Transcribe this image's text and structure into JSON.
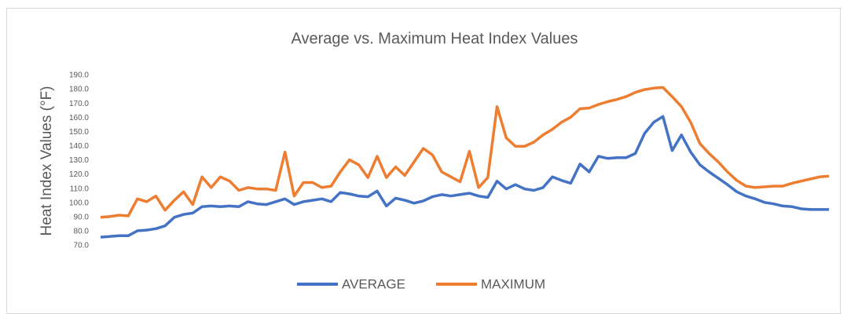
{
  "chart_data": {
    "type": "line",
    "title": "Average vs. Maximum Heat Index Values",
    "y_label": "Heat Index Values (°F)",
    "categories": [
      null,
      null,
      null,
      null,
      null,
      null,
      null,
      null,
      null,
      null,
      null,
      null,
      null,
      null,
      null,
      null,
      null,
      null,
      null,
      null,
      null,
      null,
      null,
      null,
      null,
      null,
      null,
      null,
      null,
      null,
      null,
      null,
      null,
      null,
      null,
      null,
      null,
      null,
      null,
      null,
      null,
      null,
      null,
      null,
      null,
      null,
      null,
      null,
      null,
      null,
      null,
      null,
      null,
      null,
      null,
      null,
      null,
      null,
      null,
      null,
      null,
      null,
      null,
      null,
      null,
      null,
      null,
      null,
      null,
      null,
      null,
      null,
      null,
      null,
      null,
      null,
      null,
      null,
      null,
      null
    ],
    "series": [
      {
        "name": "AVERAGE",
        "color": "#4472c4",
        "values": [
          76,
          76.5,
          77,
          77,
          80.5,
          81,
          82,
          84,
          90,
          92,
          93,
          97.5,
          98,
          97.5,
          98,
          97.5,
          101,
          99.5,
          99,
          101,
          103,
          99,
          101,
          102,
          103,
          101,
          107.5,
          106.5,
          105,
          104.5,
          108.5,
          98,
          103.5,
          102,
          100,
          101.5,
          104.5,
          106,
          105,
          106,
          107,
          105,
          104,
          115.5,
          110,
          113,
          110,
          109,
          111,
          118.5,
          116,
          114,
          127.5,
          122,
          133,
          131.5,
          132,
          132,
          135,
          149,
          157,
          161,
          137,
          148,
          136,
          127,
          122,
          117.5,
          113,
          108,
          105,
          103,
          100.5,
          99.5,
          98,
          97.5,
          96,
          95.5,
          95.5,
          95.5
        ]
      },
      {
        "name": "MAXIMUM",
        "color": "#ed7d31",
        "values": [
          90,
          90.5,
          91.5,
          91,
          103,
          101,
          105,
          95,
          102,
          108,
          99,
          118.5,
          111,
          118.5,
          115.5,
          109,
          111,
          110,
          110,
          109,
          136,
          105,
          114.5,
          114.5,
          111,
          112,
          122,
          130.5,
          127,
          118,
          133,
          118,
          125.5,
          119.5,
          129,
          138.5,
          134,
          122,
          118.5,
          115,
          136.5,
          111,
          118,
          168,
          146,
          140,
          140,
          143,
          148,
          152,
          157,
          160.5,
          166.5,
          167,
          169.5,
          171.5,
          173,
          175,
          178,
          180,
          181,
          181.5,
          175,
          168,
          157,
          142,
          135,
          129,
          122,
          116,
          112,
          111,
          111.5,
          112,
          112,
          114,
          115.5,
          117,
          118.5,
          119
        ]
      }
    ],
    "ylim": [
      70,
      190
    ],
    "yticks": [
      {
        "value": 70,
        "label": "70.0"
      },
      {
        "value": 80,
        "label": "80.0"
      },
      {
        "value": 90,
        "label": "90.0"
      },
      {
        "value": 100,
        "label": "100.0"
      },
      {
        "value": 110,
        "label": "110.0"
      },
      {
        "value": 120,
        "label": "120.0"
      },
      {
        "value": 130,
        "label": "130.0"
      },
      {
        "value": 140,
        "label": "140.0"
      },
      {
        "value": 150,
        "label": "150.0"
      },
      {
        "value": 160,
        "label": "160.0"
      },
      {
        "value": 170,
        "label": "170.0"
      },
      {
        "value": 180,
        "label": "180.0"
      },
      {
        "value": 190,
        "label": "190.0"
      }
    ],
    "grid": false,
    "legend": "bottom"
  }
}
